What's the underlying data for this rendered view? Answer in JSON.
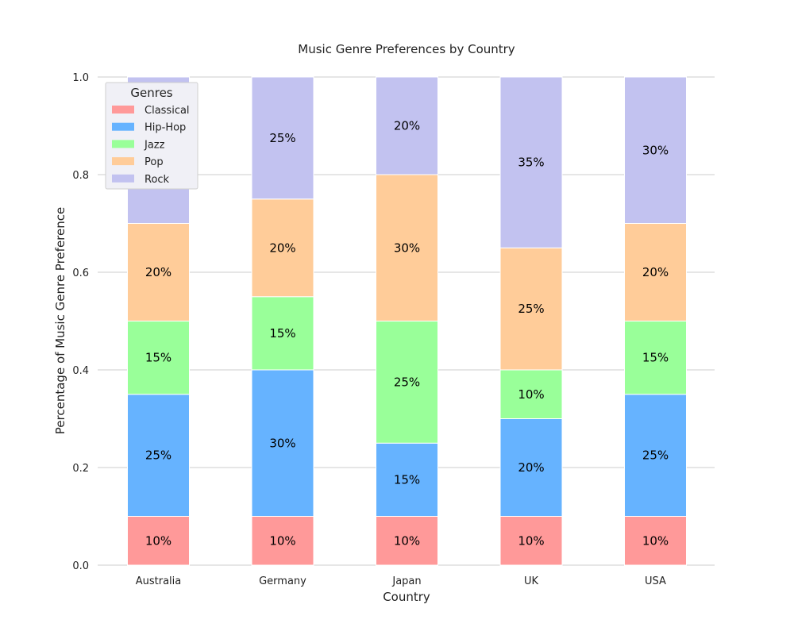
{
  "chart_data": {
    "type": "bar",
    "stacked": true,
    "title": "Music Genre Preferences by Country",
    "xlabel": "Country",
    "ylabel": "Percentage of Music Genre Preference",
    "categories": [
      "Australia",
      "Germany",
      "Japan",
      "UK",
      "USA"
    ],
    "ylim": [
      0,
      1
    ],
    "yticks": [
      "0.0",
      "0.2",
      "0.4",
      "0.6",
      "0.8",
      "1.0"
    ],
    "legend": {
      "title": "Genres",
      "position": "top-left"
    },
    "grid": "horizontal",
    "series": [
      {
        "name": "Classical",
        "color": "#ff9999",
        "values": [
          0.1,
          0.1,
          0.1,
          0.1,
          0.1
        ],
        "labels": [
          "10%",
          "10%",
          "10%",
          "10%",
          "10%"
        ]
      },
      {
        "name": "Hip-Hop",
        "color": "#66b3ff",
        "values": [
          0.25,
          0.3,
          0.15,
          0.2,
          0.25
        ],
        "labels": [
          "25%",
          "30%",
          "15%",
          "20%",
          "25%"
        ]
      },
      {
        "name": "Jazz",
        "color": "#99ff99",
        "values": [
          0.15,
          0.15,
          0.25,
          0.1,
          0.15
        ],
        "labels": [
          "15%",
          "15%",
          "25%",
          "10%",
          "15%"
        ]
      },
      {
        "name": "Pop",
        "color": "#ffcc99",
        "values": [
          0.2,
          0.2,
          0.3,
          0.25,
          0.2
        ],
        "labels": [
          "20%",
          "20%",
          "30%",
          "25%",
          "20%"
        ]
      },
      {
        "name": "Rock",
        "color": "#c2c2f0",
        "values": [
          0.3,
          0.25,
          0.2,
          0.35,
          0.3
        ],
        "labels": [
          "30%",
          "25%",
          "20%",
          "35%",
          "30%"
        ]
      }
    ]
  }
}
